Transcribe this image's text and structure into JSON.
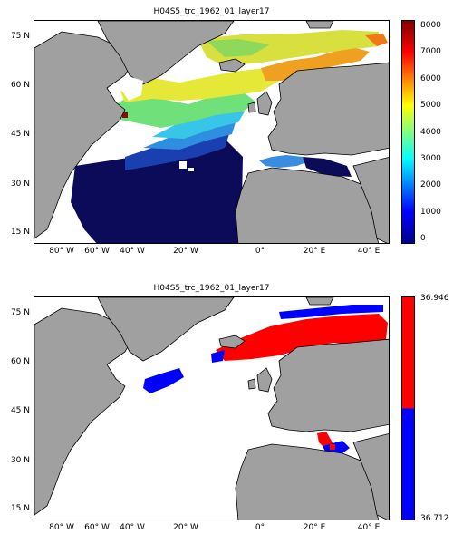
{
  "panels": [
    {
      "title": "H04S5_trc_1962_01_layer17",
      "colorbar": {
        "colormap": "jet",
        "ticks": [
          "8000",
          "7000",
          "6000",
          "5000",
          "4000",
          "3000",
          "2000",
          "1000",
          "0"
        ],
        "tick_values": [
          8000,
          7000,
          6000,
          5000,
          4000,
          3000,
          2000,
          1000,
          0
        ],
        "range": [
          0,
          8000
        ]
      }
    },
    {
      "title": "H04S5_trc_1962_01_layer17",
      "colorbar": {
        "colormap": "two-color",
        "colors": [
          "#ff0000",
          "#0000ff"
        ],
        "ticks": [
          "36.946",
          "36.712"
        ],
        "range": [
          36.712,
          36.946
        ]
      }
    }
  ],
  "lat_labels": [
    "75",
    "60",
    "45",
    "30",
    "15"
  ],
  "lat_suffix": "N",
  "lon_labels": [
    "80",
    "60",
    "40",
    "20",
    "0",
    "20",
    "40"
  ],
  "lon_suffixes": [
    "W",
    "W",
    "W",
    "W",
    "",
    "E",
    "E"
  ],
  "colors": {
    "land": "#a0a0a0",
    "coast": "#000000",
    "ocean_no_data": "#ffffff"
  }
}
